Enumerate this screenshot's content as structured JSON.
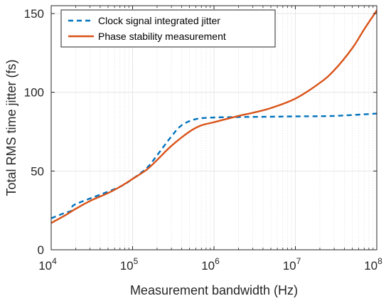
{
  "chart_data": {
    "type": "line",
    "xlabel": "Measurement bandwidth (Hz)",
    "ylabel": "Total RMS time jitter (fs)",
    "x_scale": "log",
    "xlim": [
      10000,
      100000000
    ],
    "ylim": [
      0,
      155
    ],
    "x_ticks": [
      {
        "base": "10",
        "exp": "4",
        "value": 10000
      },
      {
        "base": "10",
        "exp": "5",
        "value": 100000
      },
      {
        "base": "10",
        "exp": "6",
        "value": 1000000
      },
      {
        "base": "10",
        "exp": "7",
        "value": 10000000
      },
      {
        "base": "10",
        "exp": "8",
        "value": 100000000
      }
    ],
    "y_ticks": [
      {
        "label": "0",
        "value": 0
      },
      {
        "label": "50",
        "value": 50
      },
      {
        "label": "100",
        "value": 100
      },
      {
        "label": "150",
        "value": 150
      }
    ],
    "grid": true,
    "minor_grid": true,
    "legend_position": "top-left",
    "series": [
      {
        "name": "Clock signal integrated jitter",
        "color": "#0072BD",
        "style": "dashed",
        "x": [
          10000,
          14000,
          18000,
          18500,
          25000,
          40000,
          70000,
          100000,
          150000,
          200000,
          300000,
          400000,
          600000,
          1000000,
          2000000,
          5000000,
          10000000,
          30000000,
          100000000
        ],
        "y": [
          20,
          23,
          25,
          28,
          31,
          35,
          40,
          45,
          52,
          60,
          72,
          79,
          83,
          84,
          84.3,
          84.5,
          84.7,
          85,
          86.5
        ]
      },
      {
        "name": "Phase stability measurement",
        "color": "#D95319",
        "style": "solid",
        "x": [
          10000,
          15000,
          20000,
          30000,
          50000,
          70000,
          100000,
          150000,
          200000,
          300000,
          500000,
          700000,
          1000000,
          2000000,
          3000000,
          5000000,
          10000000,
          20000000,
          30000000,
          50000000,
          70000000,
          100000000
        ],
        "y": [
          17,
          22,
          26,
          31,
          36,
          40,
          45,
          51,
          57,
          66,
          75,
          79,
          81,
          85,
          87,
          90,
          96,
          106,
          114,
          128,
          140,
          152
        ]
      }
    ]
  }
}
